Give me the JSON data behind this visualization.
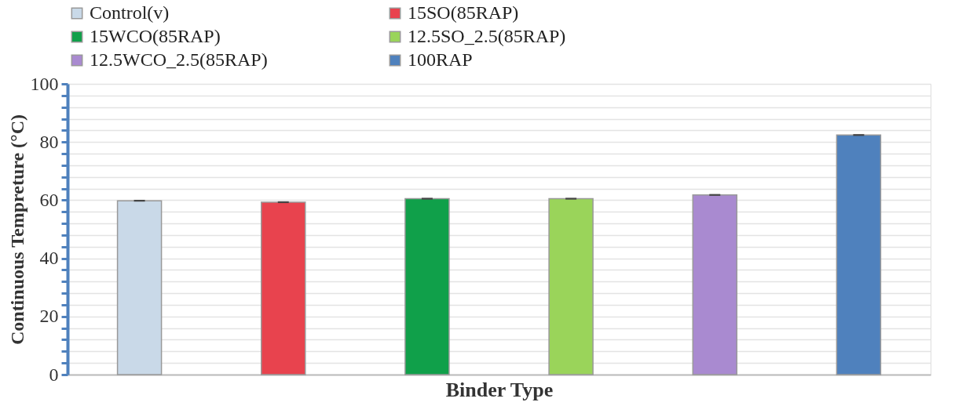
{
  "chart_data": {
    "type": "bar",
    "xlabel": "Binder Type",
    "ylabel": "Continuous Tempreture (°C)",
    "categories": [
      null,
      null,
      null,
      null,
      null,
      null
    ],
    "series": [
      {
        "name": "Control(v)",
        "color": "#c9d9e8",
        "values": [
          59.8,
          null,
          null,
          null,
          null,
          null
        ],
        "errors": [
          0.3,
          null,
          null,
          null,
          null,
          null
        ]
      },
      {
        "name": "15SO(85RAP)",
        "color": "#e8434e",
        "values": [
          null,
          59.3,
          null,
          null,
          null,
          null
        ],
        "errors": [
          null,
          0.3,
          null,
          null,
          null,
          null
        ]
      },
      {
        "name": "15WCO(85RAP)",
        "color": "#10a04a",
        "values": [
          null,
          null,
          60.5,
          null,
          null,
          null
        ],
        "errors": [
          null,
          null,
          0.3,
          null,
          null,
          null
        ]
      },
      {
        "name": "12.5SO_2.5(85RAP)",
        "color": "#9ad45a",
        "values": [
          null,
          null,
          null,
          60.5,
          null,
          null
        ],
        "errors": [
          null,
          null,
          null,
          0.3,
          null,
          null
        ]
      },
      {
        "name": "12.5WCO_2.5(85RAP)",
        "color": "#a98ad0",
        "values": [
          null,
          null,
          null,
          null,
          61.8,
          null
        ],
        "errors": [
          null,
          null,
          null,
          null,
          0.3,
          null
        ]
      },
      {
        "name": "100RAP",
        "color": "#4f81bd",
        "values": [
          null,
          null,
          null,
          null,
          null,
          82.4
        ],
        "errors": [
          null,
          null,
          null,
          null,
          null,
          0.3
        ]
      }
    ],
    "ylim": [
      0,
      100
    ],
    "yticks": [
      0,
      {
        "value": 4,
        "label": null
      },
      {
        "value": 8,
        "label": null
      },
      {
        "value": 12,
        "label": null
      },
      {
        "value": 16,
        "label": null
      },
      20,
      {
        "value": 24,
        "label": null
      },
      {
        "value": 28,
        "label": null
      },
      {
        "value": 32,
        "label": null
      },
      {
        "value": 36,
        "label": null
      },
      40,
      {
        "value": 44,
        "label": null
      },
      {
        "value": 48,
        "label": null
      },
      {
        "value": 52,
        "label": null
      },
      {
        "value": 56,
        "label": null
      },
      60,
      {
        "value": 64,
        "label": null
      },
      {
        "value": 68,
        "label": null
      },
      {
        "value": 72,
        "label": null
      },
      {
        "value": 76,
        "label": null
      },
      80,
      {
        "value": 84,
        "label": null
      },
      {
        "value": 88,
        "label": null
      },
      {
        "value": 92,
        "label": null
      },
      {
        "value": 96,
        "label": null
      },
      100
    ],
    "grid": "y",
    "legend": "top"
  }
}
